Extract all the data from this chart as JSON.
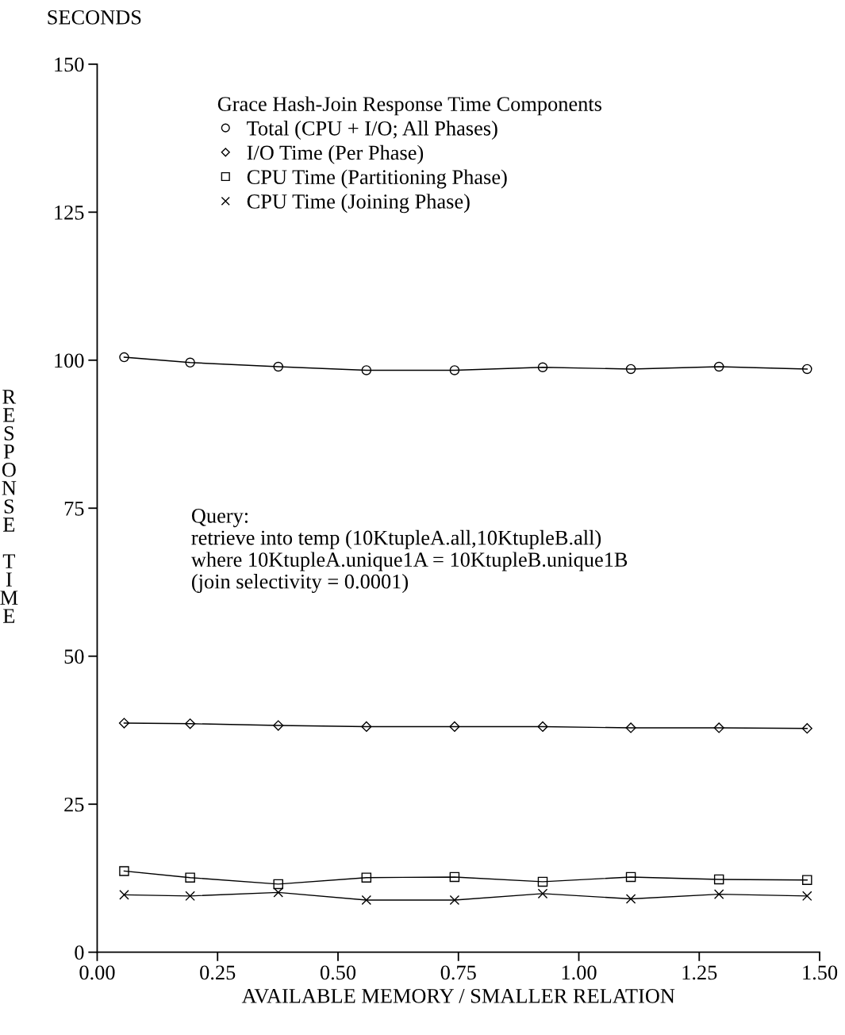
{
  "chart_data": {
    "type": "line",
    "xlabel": "AVAILABLE MEMORY / SMALLER RELATION",
    "ylabel": "RESPONSE TIME",
    "legend_title": "Grace Hash-Join Response Time Components",
    "annotations": [
      "SECONDS",
      "Query:\nretrieve into temp (10KtupleA.all,10KtupleB.all)\nwhere 10KtupleA.unique1A = 10KtupleB.unique1B\n(join selectivity = 0.0001)"
    ],
    "x": [
      0.056,
      0.193,
      0.376,
      0.559,
      0.742,
      0.925,
      1.108,
      1.291,
      1.474
    ],
    "series": [
      {
        "name": "Total (CPU + I/O; All Phases)",
        "color": "#000000",
        "marker": "circle",
        "values": [
          100.5,
          99.6,
          98.9,
          98.3,
          98.3,
          98.8,
          98.5,
          98.9,
          98.5
        ]
      },
      {
        "name": "I/O Time (Per Phase)",
        "color": "#000000",
        "marker": "diamond",
        "values": [
          38.7,
          38.6,
          38.3,
          38.1,
          38.1,
          38.1,
          37.9,
          37.9,
          37.8
        ]
      },
      {
        "name": "CPU Time (Partitioning Phase)",
        "color": "#000000",
        "marker": "square",
        "values": [
          13.7,
          12.6,
          11.5,
          12.6,
          12.7,
          11.9,
          12.7,
          12.3,
          12.2
        ]
      },
      {
        "name": "CPU Time (Joining Phase)",
        "color": "#000000",
        "marker": "cross",
        "values": [
          9.7,
          9.5,
          10.1,
          8.8,
          8.8,
          9.9,
          9.0,
          9.8,
          9.5
        ]
      }
    ],
    "xlim": [
      0,
      1.5
    ],
    "xticks": [
      {
        "value": 0,
        "label": "0.00"
      },
      {
        "value": 0.25,
        "label": "0.25"
      },
      {
        "value": 0.5,
        "label": "0.50"
      },
      {
        "value": 0.75,
        "label": "0.75"
      },
      {
        "value": 1.0,
        "label": "1.00"
      },
      {
        "value": 1.25,
        "label": "1.25"
      },
      {
        "value": 1.5,
        "label": "1.50"
      }
    ],
    "ylim": [
      0,
      150
    ],
    "yticks": [
      0,
      25,
      50,
      75,
      100,
      125,
      150
    ],
    "grid": false,
    "legend": "top",
    "line_style": "solid"
  }
}
